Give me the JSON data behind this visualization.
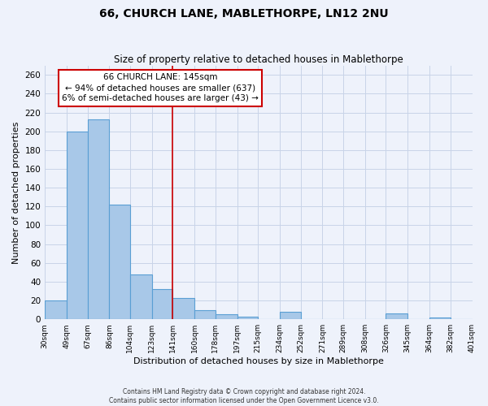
{
  "title": "66, CHURCH LANE, MABLETHORPE, LN12 2NU",
  "subtitle": "Size of property relative to detached houses in Mablethorpe",
  "xlabel": "Distribution of detached houses by size in Mablethorpe",
  "ylabel": "Number of detached properties",
  "bar_left_edges": [
    30,
    49,
    67,
    86,
    104,
    123,
    141,
    160,
    178,
    197,
    215,
    234,
    252,
    271,
    289,
    308,
    326,
    345,
    364,
    382
  ],
  "bar_widths": [
    19,
    18,
    19,
    18,
    19,
    18,
    19,
    18,
    19,
    18,
    19,
    18,
    19,
    18,
    19,
    18,
    19,
    19,
    18,
    19
  ],
  "bar_heights": [
    20,
    200,
    213,
    122,
    48,
    32,
    23,
    10,
    5,
    3,
    0,
    8,
    0,
    0,
    0,
    0,
    6,
    0,
    2,
    0
  ],
  "bar_color": "#a8c8e8",
  "bar_edgecolor": "#5a9fd4",
  "tick_labels": [
    "30sqm",
    "49sqm",
    "67sqm",
    "86sqm",
    "104sqm",
    "123sqm",
    "141sqm",
    "160sqm",
    "178sqm",
    "197sqm",
    "215sqm",
    "234sqm",
    "252sqm",
    "271sqm",
    "289sqm",
    "308sqm",
    "326sqm",
    "345sqm",
    "364sqm",
    "382sqm",
    "401sqm"
  ],
  "vline_x": 141,
  "vline_color": "#cc0000",
  "ylim": [
    0,
    270
  ],
  "yticks": [
    0,
    20,
    40,
    60,
    80,
    100,
    120,
    140,
    160,
    180,
    200,
    220,
    240,
    260
  ],
  "annotation_title": "66 CHURCH LANE: 145sqm",
  "annotation_line1": "← 94% of detached houses are smaller (637)",
  "annotation_line2": "6% of semi-detached houses are larger (43) →",
  "footer1": "Contains HM Land Registry data © Crown copyright and database right 2024.",
  "footer2": "Contains public sector information licensed under the Open Government Licence v3.0.",
  "bg_color": "#eef2fb",
  "grid_color": "#c8d4e8"
}
